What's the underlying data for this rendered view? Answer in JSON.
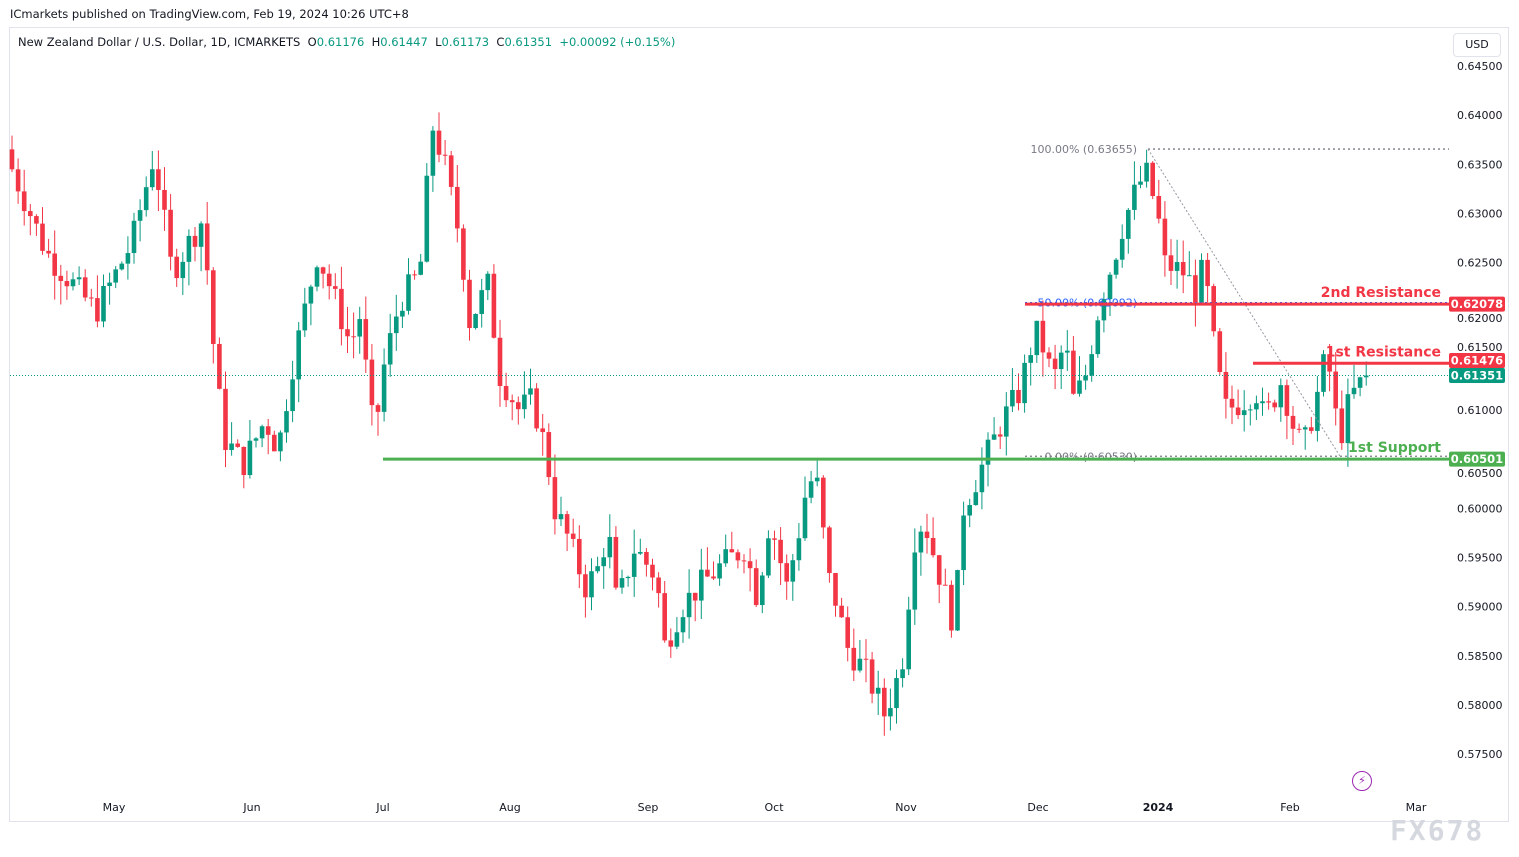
{
  "publisher_line": "ICmarkets published on TradingView.com, Feb 19, 2024 10:26 UTC+8",
  "legend": {
    "symbol": "New Zealand Dollar / U.S. Dollar, 1D, ICMARKETS",
    "o_label": "O",
    "o": "0.61176",
    "h_label": "H",
    "h": "0.61447",
    "l_label": "L",
    "l": "0.61173",
    "c_label": "C",
    "c": "0.61351",
    "change": "+0.00092 (+0.15%)"
  },
  "currency_button": "USD",
  "watermark": "FX678",
  "colors": {
    "up": "#089981",
    "down": "#f23645",
    "support": "#4caf50",
    "resistance": "#f23645",
    "fib_50": "#2962ff",
    "fib": "#787b86"
  },
  "icons": {
    "alert": "lightning-bolt-icon"
  },
  "chart_data": {
    "type": "candlestick",
    "ylim": [
      0.5725,
      0.6465
    ],
    "y_ticks": [
      "0.64500",
      "0.64000",
      "0.63500",
      "0.63000",
      "0.62500",
      "0.62000",
      "0.61500",
      "0.61000",
      "0.60500",
      "0.60000",
      "0.59500",
      "0.59000",
      "0.58500",
      "0.58000",
      "0.57500"
    ],
    "y_tick_values": [
      0.645,
      0.64,
      0.635,
      0.63,
      0.625,
      0.62,
      0.615,
      0.61,
      0.605,
      0.6,
      0.595,
      0.59,
      0.585,
      0.58,
      0.575
    ],
    "x_ticks": [
      "May",
      "Jun",
      "Jul",
      "Aug",
      "Sep",
      "Oct",
      "Nov",
      "Dec",
      "2024",
      "Feb",
      "Mar"
    ],
    "grid": false,
    "approx_closes": [
      [
        "2023-04-07",
        0.636
      ],
      [
        "2023-04-16",
        0.626
      ],
      [
        "2023-04-27",
        0.62
      ],
      [
        "2023-05-05",
        0.627
      ],
      [
        "2023-05-10",
        0.636
      ],
      [
        "2023-05-14",
        0.624
      ],
      [
        "2023-05-21",
        0.6295
      ],
      [
        "2023-05-24",
        0.613
      ],
      [
        "2023-05-26",
        0.607
      ],
      [
        "2023-05-30",
        0.6045
      ],
      [
        "2023-06-04",
        0.609
      ],
      [
        "2023-06-07",
        0.606
      ],
      [
        "2023-06-10",
        0.614
      ],
      [
        "2023-06-14",
        0.622
      ],
      [
        "2023-06-16",
        0.626
      ],
      [
        "2023-06-21",
        0.62
      ],
      [
        "2023-06-24",
        0.616
      ],
      [
        "2023-06-25",
        0.622
      ],
      [
        "2023-06-29",
        0.607
      ],
      [
        "2023-07-01",
        0.614
      ],
      [
        "2023-07-05",
        0.621
      ],
      [
        "2023-07-10",
        0.624
      ],
      [
        "2023-07-13",
        0.639
      ],
      [
        "2023-07-16",
        0.635
      ],
      [
        "2023-07-20",
        0.627
      ],
      [
        "2023-07-22",
        0.619
      ],
      [
        "2023-07-27",
        0.623
      ],
      [
        "2023-07-29",
        0.614
      ],
      [
        "2023-08-03",
        0.61
      ],
      [
        "2023-08-06",
        0.611
      ],
      [
        "2023-08-09",
        0.606
      ],
      [
        "2023-08-11",
        0.6
      ],
      [
        "2023-08-14",
        0.597
      ],
      [
        "2023-08-18",
        0.592
      ],
      [
        "2023-08-21",
        0.594
      ],
      [
        "2023-08-23",
        0.598
      ],
      [
        "2023-08-25",
        0.59
      ],
      [
        "2023-08-29",
        0.596
      ],
      [
        "2023-09-03",
        0.593
      ],
      [
        "2023-09-05",
        0.586
      ],
      [
        "2023-09-09",
        0.59
      ],
      [
        "2023-09-13",
        0.592
      ],
      [
        "2023-09-18",
        0.594
      ],
      [
        "2023-09-24",
        0.596
      ],
      [
        "2023-09-27",
        0.591
      ],
      [
        "2023-09-30",
        0.599
      ],
      [
        "2023-10-04",
        0.592
      ],
      [
        "2023-10-07",
        0.598
      ],
      [
        "2023-10-09",
        0.603
      ],
      [
        "2023-10-12",
        0.602
      ],
      [
        "2023-10-13",
        0.594
      ],
      [
        "2023-10-16",
        0.59
      ],
      [
        "2023-10-18",
        0.586
      ],
      [
        "2023-10-23",
        0.583
      ],
      [
        "2023-10-27",
        0.579
      ],
      [
        "2023-10-31",
        0.584
      ],
      [
        "2023-11-03",
        0.597
      ],
      [
        "2023-11-05",
        0.599
      ],
      [
        "2023-11-10",
        0.591
      ],
      [
        "2023-11-12",
        0.588
      ],
      [
        "2023-11-14",
        0.6
      ],
      [
        "2023-11-19",
        0.605
      ],
      [
        "2023-11-23",
        0.609
      ],
      [
        "2023-11-27",
        0.612
      ],
      [
        "2023-11-29",
        0.616
      ],
      [
        "2023-12-01",
        0.618
      ],
      [
        "2023-12-05",
        0.613
      ],
      [
        "2023-12-08",
        0.617
      ],
      [
        "2023-12-10",
        0.611
      ],
      [
        "2023-12-13",
        0.613
      ],
      [
        "2023-12-17",
        0.621
      ],
      [
        "2023-12-21",
        0.626
      ],
      [
        "2023-12-23",
        0.629
      ],
      [
        "2023-12-27",
        0.633
      ],
      [
        "2023-12-29",
        0.634
      ],
      [
        "2024-01-01",
        0.63
      ],
      [
        "2024-01-02",
        0.625
      ],
      [
        "2024-01-07",
        0.624
      ],
      [
        "2024-01-10",
        0.622
      ],
      [
        "2024-01-12",
        0.625
      ],
      [
        "2024-01-13",
        0.62
      ],
      [
        "2024-01-15",
        0.614
      ],
      [
        "2024-01-17",
        0.61
      ],
      [
        "2024-01-21",
        0.611
      ],
      [
        "2024-01-24",
        0.612
      ],
      [
        "2024-01-26",
        0.609
      ],
      [
        "2024-01-30",
        0.613
      ],
      [
        "2024-02-02",
        0.608
      ],
      [
        "2024-02-04",
        0.606
      ],
      [
        "2024-02-07",
        0.611
      ],
      [
        "2024-02-09",
        0.615
      ],
      [
        "2024-02-11",
        0.613
      ],
      [
        "2024-02-12",
        0.606
      ],
      [
        "2024-02-14",
        0.61
      ],
      [
        "2024-02-16",
        0.612
      ],
      [
        "2024-02-19",
        0.61351
      ]
    ],
    "levels": [
      {
        "label": "2nd Resistance",
        "value": 0.62078,
        "tag": "0.62078",
        "color": "#f23645"
      },
      {
        "label": "1st Resistance",
        "value": 0.61476,
        "tag": "0.61476",
        "color": "#f23645"
      },
      {
        "label": "1st Support",
        "value": 0.60501,
        "tag": "0.60501",
        "color": "#4caf50"
      }
    ],
    "last_price": {
      "value": 0.61351,
      "tag": "0.61351",
      "color": "#089981"
    },
    "fibonacci": [
      {
        "label": "100.00% (0.63655)",
        "value": 0.63655
      },
      {
        "label": "50.00% (0.62092)",
        "value": 0.62092
      },
      {
        "label": "0.00% (0.60530)",
        "value": 0.6053
      }
    ]
  }
}
